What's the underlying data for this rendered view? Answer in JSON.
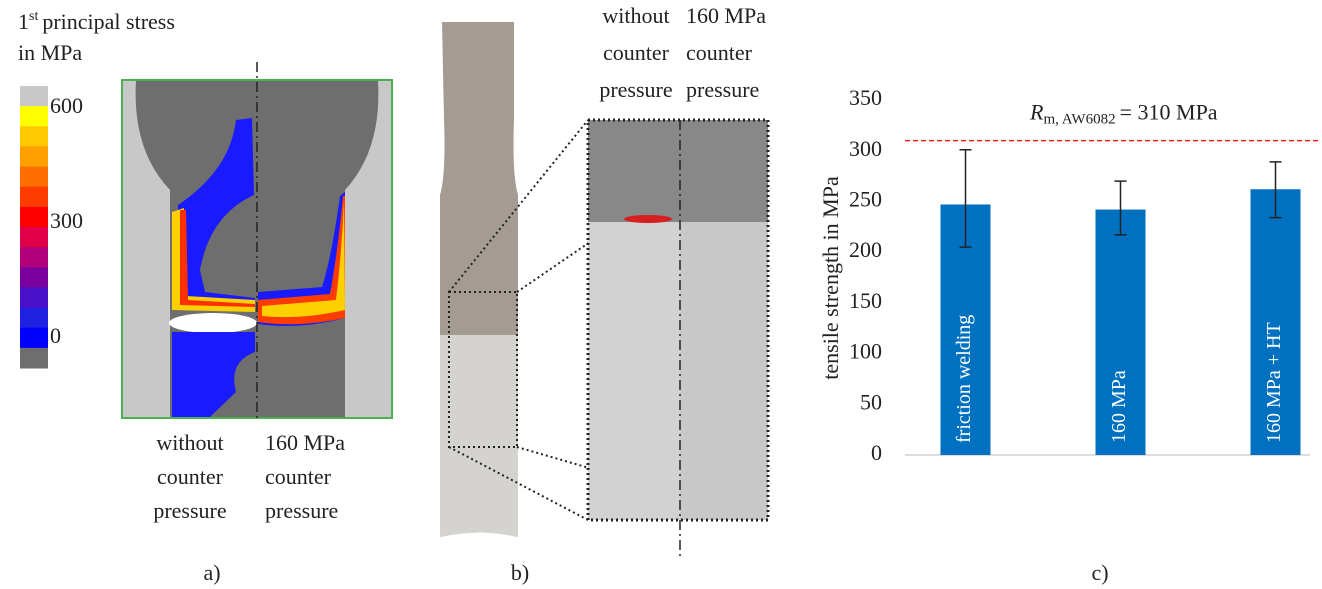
{
  "panel_a": {
    "colorbar_title_number": "1",
    "colorbar_title_sup": "st",
    "colorbar_title_rest": "principal stress",
    "colorbar_title_line2": "in MPa",
    "colorbar_colors": [
      "#c8c8c8",
      "#ffff00",
      "#ffc800",
      "#ffa000",
      "#ff6e00",
      "#ff3c00",
      "#ff0000",
      "#e0004a",
      "#b0007a",
      "#7a00a0",
      "#4a10c8",
      "#2020e0",
      "#0000ff",
      "#6e6e6e"
    ],
    "colorbar_range": [
      0,
      600
    ],
    "colorbar_ticks": [
      600,
      300,
      0
    ],
    "left_label": [
      "without",
      "counter",
      "pressure"
    ],
    "right_label": [
      "160 MPa",
      "counter",
      "pressure"
    ],
    "panel_label": "a)"
  },
  "panel_b": {
    "left_label": [
      "without",
      "counter",
      "pressure"
    ],
    "right_label": [
      "160 MPa",
      "counter",
      "pressure"
    ],
    "panel_label": "b)"
  },
  "chart_data": {
    "type": "bar",
    "categories": [
      "friction welding",
      "160 MPa",
      "160 MPa + HT"
    ],
    "values": [
      247,
      242,
      262
    ],
    "err_minus": [
      42,
      25,
      28
    ],
    "err_plus": [
      54,
      28,
      27
    ],
    "color": "#0070c0",
    "ylabel": "tensile strength in MPa",
    "ylim": [
      0,
      350
    ],
    "yticks": [
      0,
      50,
      100,
      150,
      200,
      250,
      300,
      350
    ],
    "reference": {
      "value": 310,
      "color": "#e02020",
      "symbol": "R",
      "subscript": "m, AW6082",
      "rest": "= 310 MPa"
    },
    "panel_label": "c)"
  }
}
